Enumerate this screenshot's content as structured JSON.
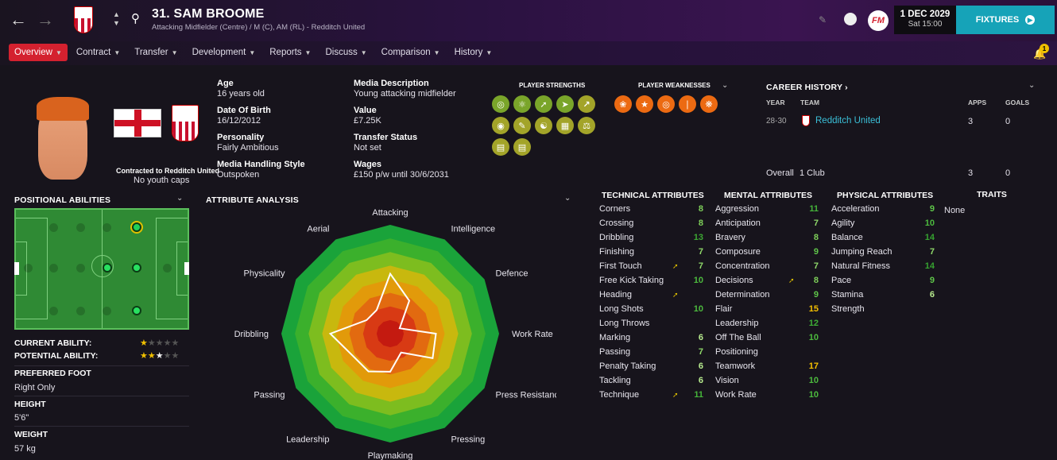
{
  "header": {
    "player_name": "31. SAM BROOME",
    "player_sub": "Attacking Midfielder (Centre) / M (C), AM (RL) - Redditch United",
    "date": "1 DEC 2029",
    "time": "Sat 15:00",
    "fixtures_label": "FIXTURES",
    "fm_logo": "FM",
    "notification_count": "1"
  },
  "nav": [
    {
      "label": "Overview"
    },
    {
      "label": "Contract"
    },
    {
      "label": "Transfer"
    },
    {
      "label": "Development"
    },
    {
      "label": "Reports"
    },
    {
      "label": "Discuss"
    },
    {
      "label": "Comparison"
    },
    {
      "label": "History"
    }
  ],
  "profile": {
    "contract_note": "Contracted to Redditch United",
    "youth_caps": "No youth caps",
    "age_label": "Age",
    "age": "16 years old",
    "dob_label": "Date Of Birth",
    "dob": "16/12/2012",
    "personality_label": "Personality",
    "personality": "Fairly Ambitious",
    "media_style_label": "Media Handling Style",
    "media_style": "Outspoken",
    "media_desc_label": "Media Description",
    "media_desc": "Young attacking midfielder",
    "value_label": "Value",
    "value": "£7.25K",
    "transfer_status_label": "Transfer Status",
    "transfer_status": "Not set",
    "wages_label": "Wages",
    "wages": "£150 p/w until 30/6/2031"
  },
  "strengths": {
    "title": "PLAYER STRENGTHS",
    "weaknesses_title": "PLAYER WEAKNESSES"
  },
  "career": {
    "title": "CAREER HISTORY",
    "year_h": "YEAR",
    "team_h": "TEAM",
    "apps_h": "APPS",
    "goals_h": "GOALS",
    "rows": [
      {
        "year": "28-30",
        "team": "Redditch United",
        "apps": "3",
        "goals": "0"
      }
    ],
    "overall_label": "Overall",
    "overall_club": "1 Club",
    "overall_apps": "3",
    "overall_goals": "0"
  },
  "positional": {
    "title": "POSITIONAL ABILITIES",
    "current_label": "CURRENT ABILITY:",
    "potential_label": "POTENTIAL ABILITY:",
    "current_stars": 1,
    "potential_stars": 2.5,
    "foot_label": "PREFERRED FOOT",
    "foot": "Right Only",
    "height_label": "HEIGHT",
    "height": "5'6\"",
    "weight_label": "WEIGHT",
    "weight": "57 kg"
  },
  "analysis": {
    "title": "ATTRIBUTE ANALYSIS",
    "axes": [
      "Attacking",
      "Intelligence",
      "Defence",
      "Work Rate",
      "Press Resistance",
      "Pressing",
      "Playmaking",
      "Leadership",
      "Passing",
      "Dribbling",
      "Physicality",
      "Aerial"
    ],
    "values": [
      0.55,
      0.35,
      0.1,
      0.42,
      0.45,
      0.2,
      0.35,
      0.4,
      0.4,
      0.55,
      0.25,
      0.25
    ]
  },
  "technical": {
    "title": "TECHNICAL ATTRIBUTES",
    "rows": [
      {
        "name": "Corners",
        "val": "8"
      },
      {
        "name": "Crossing",
        "val": "8"
      },
      {
        "name": "Dribbling",
        "val": "13"
      },
      {
        "name": "Finishing",
        "val": "7"
      },
      {
        "name": "First Touch",
        "val": "7"
      },
      {
        "name": "Free Kick Taking",
        "val": "10"
      },
      {
        "name": "Heading",
        "val": ""
      },
      {
        "name": "Long Shots",
        "val": "10"
      },
      {
        "name": "Long Throws",
        "val": ""
      },
      {
        "name": "Marking",
        "val": "6"
      },
      {
        "name": "Passing",
        "val": "7"
      },
      {
        "name": "Penalty Taking",
        "val": "6"
      },
      {
        "name": "Tackling",
        "val": "6"
      },
      {
        "name": "Technique",
        "val": "11"
      }
    ]
  },
  "mental": {
    "title": "MENTAL ATTRIBUTES",
    "rows": [
      {
        "name": "Aggression",
        "val": "11"
      },
      {
        "name": "Anticipation",
        "val": "7"
      },
      {
        "name": "Bravery",
        "val": "8"
      },
      {
        "name": "Composure",
        "val": "9"
      },
      {
        "name": "Concentration",
        "val": "7"
      },
      {
        "name": "Decisions",
        "val": "8"
      },
      {
        "name": "Determination",
        "val": "9"
      },
      {
        "name": "Flair",
        "val": "15"
      },
      {
        "name": "Leadership",
        "val": "12"
      },
      {
        "name": "Off The Ball",
        "val": "10"
      },
      {
        "name": "Positioning",
        "val": ""
      },
      {
        "name": "Teamwork",
        "val": "17"
      },
      {
        "name": "Vision",
        "val": "10"
      },
      {
        "name": "Work Rate",
        "val": "10"
      }
    ]
  },
  "physical": {
    "title": "PHYSICAL ATTRIBUTES",
    "rows": [
      {
        "name": "Acceleration",
        "val": "9"
      },
      {
        "name": "Agility",
        "val": "10"
      },
      {
        "name": "Balance",
        "val": "14"
      },
      {
        "name": "Jumping Reach",
        "val": "7"
      },
      {
        "name": "Natural Fitness",
        "val": "14"
      },
      {
        "name": "Pace",
        "val": "9"
      },
      {
        "name": "Stamina",
        "val": "6"
      },
      {
        "name": "Strength",
        "val": ""
      }
    ]
  },
  "traits": {
    "title": "TRAITS",
    "value": "None"
  }
}
